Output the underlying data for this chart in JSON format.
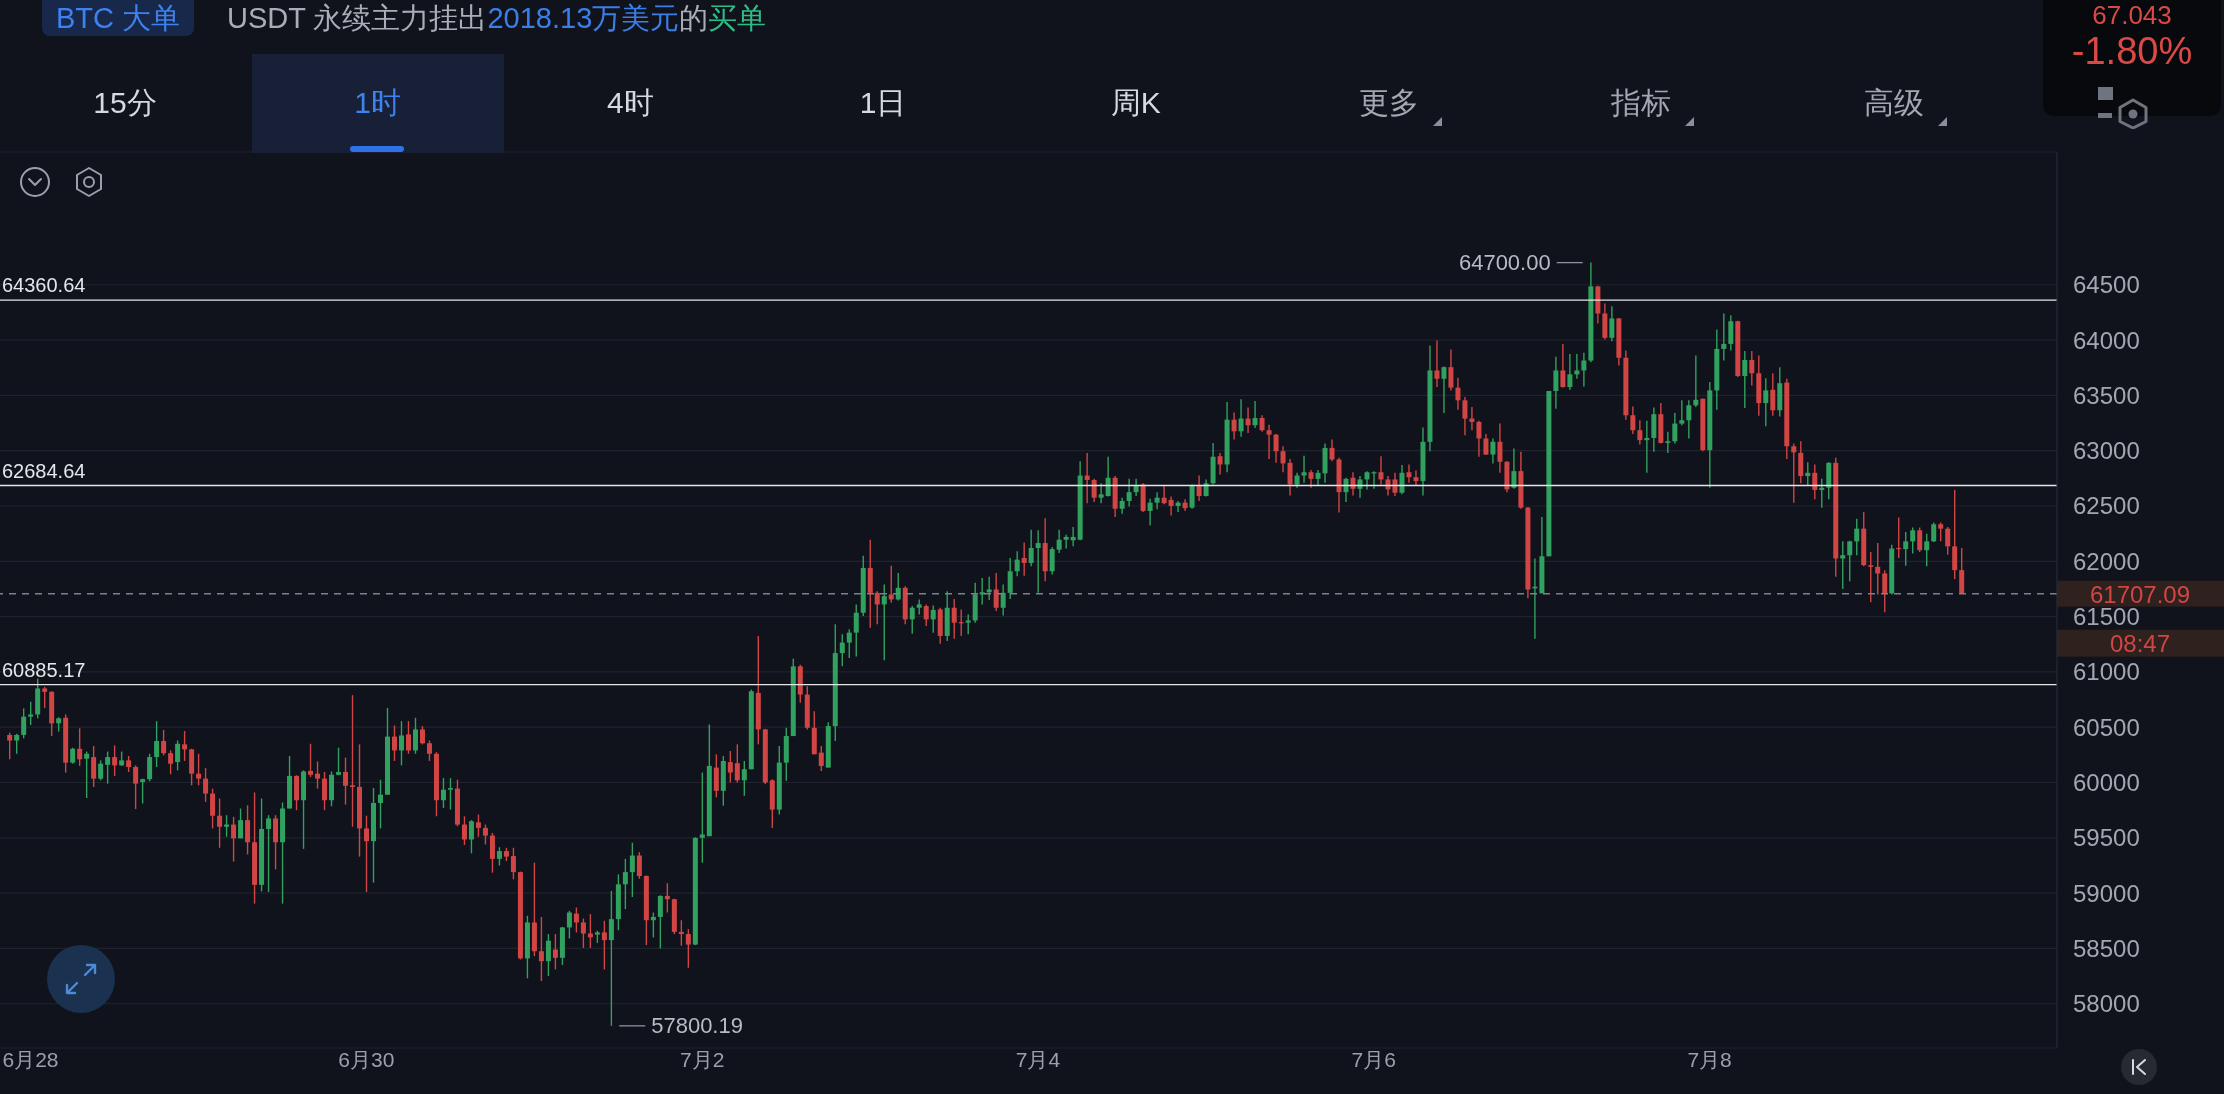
{
  "chart_data": {
    "type": "candlestick",
    "categories": [
      null,
      null,
      null,
      "6月28",
      null,
      null,
      null,
      null,
      null,
      null,
      null,
      null,
      null,
      null,
      null,
      null,
      null,
      null,
      null,
      null,
      null,
      null,
      null,
      null,
      null,
      null,
      null,
      null,
      null,
      null,
      null,
      null,
      null,
      null,
      null,
      null,
      null,
      null,
      null,
      null,
      null,
      null,
      null,
      null,
      null,
      null,
      null,
      null,
      null,
      null,
      null,
      "6月30",
      null,
      null,
      null,
      null,
      null,
      null,
      null,
      null,
      null,
      null,
      null,
      null,
      null,
      null,
      null,
      null,
      null,
      null,
      null,
      null,
      null,
      null,
      null,
      null,
      null,
      null,
      null,
      null,
      null,
      null,
      null,
      null,
      null,
      null,
      null,
      null,
      null,
      null,
      null,
      null,
      null,
      null,
      null,
      null,
      null,
      null,
      null,
      "7月2",
      null,
      null,
      null,
      null,
      null,
      null,
      null,
      null,
      null,
      null,
      null,
      null,
      null,
      null,
      null,
      null,
      null,
      null,
      null,
      null,
      null,
      null,
      null,
      null,
      null,
      null,
      null,
      null,
      null,
      null,
      null,
      null,
      null,
      null,
      null,
      null,
      null,
      null,
      null,
      null,
      null,
      null,
      null,
      null,
      null,
      null,
      null,
      "7月4",
      null,
      null,
      null,
      null,
      null,
      null,
      null,
      null,
      null,
      null,
      null,
      null,
      null,
      null,
      null,
      null,
      null,
      null,
      null,
      null,
      null,
      null,
      null,
      null,
      null,
      null,
      null,
      null,
      null,
      null,
      null,
      null,
      null,
      null,
      null,
      null,
      null,
      null,
      null,
      null,
      null,
      null,
      null,
      null,
      null,
      null,
      null,
      "7月6",
      null,
      null,
      null,
      null,
      null,
      null,
      null,
      null,
      null,
      null,
      null,
      null,
      null,
      null,
      null,
      null,
      null,
      null,
      null,
      null,
      null,
      null,
      null,
      null,
      null,
      null,
      null,
      null,
      null,
      null,
      null,
      null,
      null,
      null,
      null,
      null,
      null,
      null,
      null,
      null,
      null,
      null,
      null,
      null,
      null,
      null,
      null,
      "7月8",
      null,
      null,
      null,
      null,
      null,
      null,
      null,
      null,
      null,
      null,
      null,
      null,
      null,
      null,
      null,
      null,
      null,
      null,
      null,
      null,
      null,
      null,
      null,
      null,
      null,
      null,
      null,
      null,
      null,
      null,
      null,
      null,
      null,
      null,
      null,
      null
    ],
    "ohlc": [
      [
        60430,
        60450,
        60210,
        60380
      ],
      [
        60380,
        60440,
        60260,
        60430
      ],
      [
        60430,
        60670,
        60400,
        60595
      ],
      [
        60595,
        60730,
        60520,
        60615
      ],
      [
        60615,
        60940,
        60580,
        60850
      ],
      [
        60850,
        60865,
        60675,
        60820
      ],
      [
        60820,
        60825,
        60420,
        60535
      ],
      [
        60535,
        60590,
        60460,
        60580
      ],
      [
        60585,
        60615,
        60090,
        60180
      ],
      [
        60180,
        60315,
        60170,
        60305
      ],
      [
        60305,
        60490,
        60150,
        60210
      ],
      [
        60215,
        60280,
        59860,
        60260
      ],
      [
        60230,
        60330,
        59960,
        60035
      ],
      [
        60035,
        60200,
        60020,
        60170
      ],
      [
        60160,
        60280,
        59990,
        60230
      ],
      [
        60230,
        60335,
        60060,
        60155
      ],
      [
        60155,
        60280,
        60150,
        60200
      ],
      [
        60200,
        60240,
        60095,
        60140
      ],
      [
        60140,
        60155,
        59760,
        59990
      ],
      [
        60005,
        60035,
        59810,
        60030
      ],
      [
        60030,
        60260,
        60010,
        60230
      ],
      [
        60230,
        60555,
        60140,
        60375
      ],
      [
        60375,
        60475,
        60245,
        60265
      ],
      [
        60265,
        60290,
        60075,
        60170
      ],
      [
        60185,
        60380,
        60110,
        60350
      ],
      [
        60345,
        60465,
        60195,
        60300
      ],
      [
        60300,
        60305,
        59975,
        60080
      ],
      [
        60080,
        60260,
        59975,
        60035
      ],
      [
        60035,
        60130,
        59825,
        59900
      ],
      [
        59900,
        59945,
        59585,
        59700
      ],
      [
        59700,
        59855,
        59410,
        59600
      ],
      [
        59600,
        59705,
        59510,
        59620
      ],
      [
        59620,
        59690,
        59285,
        59495
      ],
      [
        59495,
        59765,
        59495,
        59660
      ],
      [
        59660,
        59795,
        59350,
        59460
      ],
      [
        59460,
        59910,
        58905,
        59075
      ],
      [
        59075,
        59855,
        59015,
        59580
      ],
      [
        59580,
        59705,
        59010,
        59675
      ],
      [
        59675,
        59705,
        59215,
        59460
      ],
      [
        59460,
        59820,
        58905,
        59765
      ],
      [
        59765,
        60240,
        59765,
        60060
      ],
      [
        60060,
        60065,
        59750,
        59840
      ],
      [
        59840,
        60110,
        59400,
        60100
      ],
      [
        60105,
        60350,
        60050,
        60070
      ],
      [
        60080,
        60190,
        59945,
        60035
      ],
      [
        60035,
        60095,
        59750,
        59840
      ],
      [
        59840,
        60100,
        59785,
        60070
      ],
      [
        60070,
        60315,
        60065,
        60095
      ],
      [
        60095,
        60225,
        59800,
        59970
      ],
      [
        59975,
        60790,
        59600,
        59960
      ],
      [
        59960,
        60345,
        59330,
        59585
      ],
      [
        59585,
        59700,
        59010,
        59470
      ],
      [
        59470,
        59950,
        59095,
        59815
      ],
      [
        59815,
        60025,
        59585,
        59890
      ],
      [
        59890,
        60675,
        59890,
        60415
      ],
      [
        60415,
        60515,
        60195,
        60290
      ],
      [
        60290,
        60555,
        60155,
        60425
      ],
      [
        60435,
        60555,
        60260,
        60290
      ],
      [
        60290,
        60585,
        60260,
        60480
      ],
      [
        60480,
        60510,
        60345,
        60355
      ],
      [
        60355,
        60380,
        60195,
        60260
      ],
      [
        60260,
        60275,
        59695,
        59840
      ],
      [
        59840,
        60040,
        59770,
        59935
      ],
      [
        59935,
        60040,
        59755,
        59950
      ],
      [
        59945,
        60025,
        59605,
        59620
      ],
      [
        59620,
        59695,
        59435,
        59485
      ],
      [
        59485,
        59660,
        59360,
        59650
      ],
      [
        59640,
        59710,
        59510,
        59590
      ],
      [
        59590,
        59620,
        59440,
        59520
      ],
      [
        59520,
        59545,
        59185,
        59310
      ],
      [
        59310,
        59415,
        59250,
        59380
      ],
      [
        59380,
        59410,
        59290,
        59330
      ],
      [
        59335,
        59410,
        59125,
        59190
      ],
      [
        59190,
        59195,
        58400,
        58410
      ],
      [
        58410,
        58795,
        58230,
        58735
      ],
      [
        58735,
        59275,
        58430,
        58475
      ],
      [
        58475,
        58785,
        58205,
        58385
      ],
      [
        58385,
        58630,
        58250,
        58570
      ],
      [
        58490,
        58630,
        58310,
        58415
      ],
      [
        58415,
        58695,
        58350,
        58690
      ],
      [
        58690,
        58840,
        58590,
        58825
      ],
      [
        58815,
        58870,
        58645,
        58735
      ],
      [
        58735,
        58770,
        58505,
        58635
      ],
      [
        58635,
        58810,
        58505,
        58600
      ],
      [
        58625,
        58660,
        58550,
        58645
      ],
      [
        58645,
        58750,
        58310,
        58575
      ],
      [
        58575,
        59020,
        57800.19,
        58765
      ],
      [
        58765,
        59170,
        58665,
        59080
      ],
      [
        59080,
        59310,
        58855,
        59190
      ],
      [
        59190,
        59455,
        58965,
        59340
      ],
      [
        59340,
        59370,
        59130,
        59155
      ],
      [
        59155,
        59160,
        58530,
        58755
      ],
      [
        58755,
        58825,
        58600,
        58785
      ],
      [
        58785,
        58980,
        58500,
        58975
      ],
      [
        58975,
        59090,
        58825,
        58945
      ],
      [
        58945,
        58950,
        58630,
        58650
      ],
      [
        58650,
        58755,
        58525,
        58630
      ],
      [
        58630,
        58675,
        58325,
        58535
      ],
      [
        58535,
        59505,
        58530,
        59500
      ],
      [
        59500,
        60090,
        59275,
        59530
      ],
      [
        59515,
        60525,
        59515,
        60150
      ],
      [
        60135,
        60255,
        59865,
        59925
      ],
      [
        59925,
        60240,
        59790,
        60195
      ],
      [
        60185,
        60285,
        60000,
        60090
      ],
      [
        60175,
        60345,
        60000,
        60020
      ],
      [
        60020,
        60195,
        59880,
        60120
      ],
      [
        60120,
        60840,
        60120,
        60825
      ],
      [
        60810,
        61325,
        60345,
        60480
      ],
      [
        60480,
        60485,
        59985,
        60000
      ],
      [
        60020,
        60030,
        59590,
        59755
      ],
      [
        59755,
        60330,
        59710,
        60180
      ],
      [
        60180,
        60495,
        60015,
        60420
      ],
      [
        60420,
        61120,
        60420,
        61050
      ],
      [
        61050,
        61065,
        60720,
        60795
      ],
      [
        60795,
        60870,
        60480,
        60495
      ],
      [
        60495,
        60645,
        60255,
        60255
      ],
      [
        60270,
        60330,
        60105,
        60150
      ],
      [
        60135,
        60545,
        60135,
        60510
      ],
      [
        60510,
        61430,
        60375,
        61170
      ],
      [
        61170,
        61340,
        61050,
        61265
      ],
      [
        61265,
        61385,
        61125,
        61355
      ],
      [
        61355,
        61610,
        61140,
        61535
      ],
      [
        61535,
        62050,
        61505,
        61940
      ],
      [
        61940,
        62195,
        61400,
        61715
      ],
      [
        61715,
        61730,
        61430,
        61610
      ],
      [
        61610,
        61790,
        61105,
        61685
      ],
      [
        61700,
        61960,
        61625,
        61655
      ],
      [
        61655,
        61895,
        61645,
        61760
      ],
      [
        61760,
        61775,
        61430,
        61475
      ],
      [
        61475,
        61595,
        61345,
        61580
      ],
      [
        61580,
        61655,
        61520,
        61610
      ],
      [
        61595,
        61610,
        61415,
        61475
      ],
      [
        61475,
        61600,
        61355,
        61560
      ],
      [
        61565,
        61580,
        61255,
        61325
      ],
      [
        61325,
        61730,
        61280,
        61580
      ],
      [
        61580,
        61660,
        61300,
        61445
      ],
      [
        61450,
        61565,
        61325,
        61440
      ],
      [
        61445,
        61520,
        61340,
        61465
      ],
      [
        61465,
        61805,
        61445,
        61700
      ],
      [
        61700,
        61850,
        61610,
        61720
      ],
      [
        61720,
        61860,
        61650,
        61745
      ],
      [
        61745,
        61895,
        61550,
        61580
      ],
      [
        61580,
        61790,
        61510,
        61715
      ],
      [
        61715,
        62030,
        61660,
        61910
      ],
      [
        61910,
        62090,
        61865,
        62015
      ],
      [
        62030,
        62170,
        61870,
        61985
      ],
      [
        61985,
        62285,
        61955,
        62120
      ],
      [
        62120,
        62280,
        61715,
        62165
      ],
      [
        62165,
        62390,
        61820,
        61910
      ],
      [
        61910,
        62130,
        61880,
        62110
      ],
      [
        62105,
        62285,
        62075,
        62195
      ],
      [
        62195,
        62240,
        62115,
        62220
      ],
      [
        62190,
        62310,
        62135,
        62220
      ],
      [
        62195,
        62905,
        62190,
        62775
      ],
      [
        62775,
        62980,
        62525,
        62735
      ],
      [
        62735,
        62745,
        62535,
        62575
      ],
      [
        62575,
        62705,
        62525,
        62605
      ],
      [
        62590,
        62945,
        62585,
        62755
      ],
      [
        62755,
        62770,
        62400,
        62475
      ],
      [
        62475,
        62575,
        62430,
        62545
      ],
      [
        62545,
        62745,
        62495,
        62625
      ],
      [
        62625,
        62745,
        62590,
        62685
      ],
      [
        62695,
        62705,
        62445,
        62455
      ],
      [
        62455,
        62565,
        62325,
        62530
      ],
      [
        62530,
        62625,
        62470,
        62575
      ],
      [
        62575,
        62680,
        62515,
        62525
      ],
      [
        62555,
        62585,
        62415,
        62500
      ],
      [
        62500,
        62545,
        62445,
        62530
      ],
      [
        62530,
        62560,
        62455,
        62480
      ],
      [
        62485,
        62695,
        62475,
        62680
      ],
      [
        62680,
        62775,
        62545,
        62590
      ],
      [
        62590,
        62740,
        62585,
        62705
      ],
      [
        62705,
        63070,
        62695,
        62945
      ],
      [
        62950,
        62980,
        62785,
        62875
      ],
      [
        62875,
        63440,
        62805,
        63280
      ],
      [
        63280,
        63345,
        63100,
        63175
      ],
      [
        63175,
        63465,
        63125,
        63290
      ],
      [
        63290,
        63390,
        63160,
        63230
      ],
      [
        63230,
        63450,
        63205,
        63295
      ],
      [
        63295,
        63320,
        63170,
        63185
      ],
      [
        63185,
        63235,
        62925,
        63145
      ],
      [
        63145,
        63150,
        62890,
        62995
      ],
      [
        62995,
        63040,
        62805,
        62885
      ],
      [
        62890,
        62925,
        62595,
        62695
      ],
      [
        62695,
        62800,
        62665,
        62775
      ],
      [
        62775,
        62955,
        62710,
        62805
      ],
      [
        62805,
        62825,
        62665,
        62745
      ],
      [
        62745,
        62825,
        62680,
        62800
      ],
      [
        62795,
        63065,
        62710,
        63025
      ],
      [
        63025,
        63100,
        62905,
        62920
      ],
      [
        62920,
        62935,
        62440,
        62625
      ],
      [
        62625,
        62755,
        62535,
        62745
      ],
      [
        62755,
        62805,
        62595,
        62655
      ],
      [
        62655,
        62770,
        62575,
        62740
      ],
      [
        62740,
        62815,
        62650,
        62805
      ],
      [
        62795,
        62815,
        62655,
        62805
      ],
      [
        62805,
        62950,
        62695,
        62740
      ],
      [
        62740,
        62770,
        62595,
        62650
      ],
      [
        62740,
        62800,
        62590,
        62620
      ],
      [
        62620,
        62870,
        62605,
        62800
      ],
      [
        62805,
        62875,
        62710,
        62760
      ],
      [
        62760,
        62820,
        62685,
        62725
      ],
      [
        62725,
        63210,
        62595,
        63080
      ],
      [
        63080,
        63950,
        62995,
        63725
      ],
      [
        63725,
        63995,
        63575,
        63650
      ],
      [
        63650,
        63760,
        63340,
        63755
      ],
      [
        63755,
        63915,
        63545,
        63570
      ],
      [
        63570,
        63660,
        63370,
        63455
      ],
      [
        63455,
        63485,
        63140,
        63290
      ],
      [
        63290,
        63395,
        63185,
        63260
      ],
      [
        63260,
        63270,
        62945,
        63110
      ],
      [
        63110,
        63150,
        62960,
        62965
      ],
      [
        62965,
        63110,
        62885,
        63080
      ],
      [
        63080,
        63245,
        62800,
        62900
      ],
      [
        62900,
        62905,
        62625,
        62650
      ],
      [
        62665,
        63020,
        62655,
        62815
      ],
      [
        62815,
        62990,
        62475,
        62485
      ],
      [
        62485,
        62490,
        61665,
        61745
      ],
      [
        61755,
        62025,
        61300,
        61770
      ],
      [
        61710,
        62400,
        61710,
        62045
      ],
      [
        62045,
        63540,
        62045,
        63540
      ],
      [
        63540,
        63850,
        63380,
        63725
      ],
      [
        63725,
        63965,
        63570,
        63575
      ],
      [
        63575,
        63875,
        63550,
        63690
      ],
      [
        63690,
        63875,
        63650,
        63725
      ],
      [
        63725,
        63885,
        63580,
        63815
      ],
      [
        63815,
        64700,
        63800,
        64485
      ],
      [
        64485,
        64490,
        64150,
        64240
      ],
      [
        64240,
        64330,
        64005,
        64020
      ],
      [
        64020,
        64305,
        63990,
        64195
      ],
      [
        64195,
        64200,
        63770,
        63840
      ],
      [
        63840,
        63905,
        63280,
        63320
      ],
      [
        63320,
        63400,
        63150,
        63185
      ],
      [
        63185,
        63275,
        63055,
        63095
      ],
      [
        63095,
        63270,
        62800,
        63115
      ],
      [
        63115,
        63390,
        62990,
        63330
      ],
      [
        63330,
        63430,
        63065,
        63070
      ],
      [
        63070,
        63170,
        62980,
        63085
      ],
      [
        63085,
        63340,
        63065,
        63245
      ],
      [
        63245,
        63455,
        63230,
        63275
      ],
      [
        63275,
        63455,
        63110,
        63410
      ],
      [
        63410,
        63860,
        63395,
        63460
      ],
      [
        63470,
        63470,
        62995,
        63005
      ],
      [
        63005,
        63620,
        62665,
        63545
      ],
      [
        63545,
        64095,
        63370,
        63920
      ],
      [
        63920,
        64240,
        63815,
        63965
      ],
      [
        63965,
        64225,
        63905,
        64170
      ],
      [
        64170,
        64175,
        63665,
        63675
      ],
      [
        63675,
        63900,
        63385,
        63820
      ],
      [
        63820,
        63900,
        63590,
        63700
      ],
      [
        63700,
        63860,
        63315,
        63430
      ],
      [
        63430,
        63655,
        63220,
        63545
      ],
      [
        63550,
        63700,
        63315,
        63365
      ],
      [
        63365,
        63755,
        63310,
        63610
      ],
      [
        63615,
        63650,
        62925,
        63040
      ],
      [
        63040,
        63065,
        62530,
        62985
      ],
      [
        62980,
        63085,
        62705,
        62770
      ],
      [
        62770,
        62895,
        62685,
        62800
      ],
      [
        62800,
        62875,
        62560,
        62645
      ],
      [
        62645,
        62745,
        62485,
        62665
      ],
      [
        62665,
        62895,
        62560,
        62890
      ],
      [
        62890,
        62935,
        61860,
        62025
      ],
      [
        62025,
        62180,
        61750,
        62055
      ],
      [
        62055,
        62185,
        61820,
        62180
      ],
      [
        62180,
        62385,
        62055,
        62295
      ],
      [
        62295,
        62445,
        61955,
        61965
      ],
      [
        61965,
        62085,
        61630,
        61950
      ],
      [
        61950,
        62165,
        61700,
        61890
      ],
      [
        61890,
        61920,
        61540,
        61710
      ],
      [
        61710,
        62150,
        61700,
        62115
      ],
      [
        62120,
        62395,
        62030,
        62110
      ],
      [
        62110,
        62265,
        61960,
        62180
      ],
      [
        62180,
        62305,
        62070,
        62280
      ],
      [
        62280,
        62305,
        62085,
        62100
      ],
      [
        62100,
        62250,
        61955,
        62180
      ],
      [
        62180,
        62350,
        62175,
        62335
      ],
      [
        62335,
        62350,
        62180,
        62295
      ],
      [
        62295,
        62310,
        62060,
        62135
      ],
      [
        62135,
        62645,
        61840,
        61920
      ],
      [
        61920,
        62120,
        61707.09,
        61707.09
      ]
    ],
    "colors": [
      "#d24545",
      "#31a15f",
      "#31a15f",
      "#31a15f",
      "#31a15f",
      "#d24545",
      "#d24545",
      "#31a15f",
      "#d24545",
      "#31a15f",
      "#d24545",
      "#31a15f",
      "#d24545",
      "#31a15f",
      "#31a15f",
      "#d24545",
      "#31a15f",
      "#d24545",
      "#d24545",
      "#31a15f",
      "#31a15f",
      "#31a15f",
      "#d24545",
      "#d24545",
      "#31a15f",
      "#d24545",
      "#d24545",
      "#d24545",
      "#d24545",
      "#d24545",
      "#d24545",
      "#31a15f",
      "#d24545",
      "#31a15f",
      "#d24545",
      "#d24545",
      "#31a15f",
      "#31a15f",
      "#d24545",
      "#31a15f",
      "#31a15f",
      "#d24545",
      "#31a15f",
      "#d24545",
      "#d24545",
      "#d24545",
      "#31a15f",
      "#31a15f",
      "#d24545",
      "#d24545",
      "#d24545",
      "#d24545",
      "#31a15f",
      "#31a15f",
      "#31a15f",
      "#d24545",
      "#31a15f",
      "#d24545",
      "#31a15f",
      "#d24545",
      "#d24545",
      "#d24545",
      "#31a15f",
      "#31a15f",
      "#d24545",
      "#d24545",
      "#31a15f",
      "#d24545",
      "#d24545",
      "#d24545",
      "#31a15f",
      "#d24545",
      "#d24545",
      "#d24545",
      "#31a15f",
      "#d24545",
      "#d24545",
      "#31a15f",
      "#d24545",
      "#31a15f",
      "#31a15f",
      "#d24545",
      "#d24545",
      "#d24545",
      "#31a15f",
      "#d24545",
      "#31a15f",
      "#31a15f",
      "#31a15f",
      "#31a15f",
      "#d24545",
      "#d24545",
      "#31a15f",
      "#31a15f",
      "#d24545",
      "#d24545",
      "#d24545",
      "#d24545",
      "#31a15f",
      "#31a15f",
      "#31a15f",
      "#d24545",
      "#31a15f",
      "#d24545",
      "#d24545",
      "#31a15f",
      "#31a15f",
      "#d24545",
      "#d24545",
      "#d24545",
      "#31a15f",
      "#31a15f",
      "#31a15f",
      "#d24545",
      "#d24545",
      "#d24545",
      "#d24545",
      "#31a15f",
      "#31a15f",
      "#31a15f",
      "#31a15f",
      "#31a15f",
      "#31a15f",
      "#d24545",
      "#d24545",
      "#31a15f",
      "#d24545",
      "#31a15f",
      "#d24545",
      "#31a15f",
      "#31a15f",
      "#d24545",
      "#31a15f",
      "#d24545",
      "#31a15f",
      "#d24545",
      "#d24545",
      "#31a15f",
      "#31a15f",
      "#31a15f",
      "#31a15f",
      "#d24545",
      "#31a15f",
      "#31a15f",
      "#31a15f",
      "#d24545",
      "#31a15f",
      "#31a15f",
      "#d24545",
      "#31a15f",
      "#31a15f",
      "#31a15f",
      "#31a15f",
      "#31a15f",
      "#d24545",
      "#d24545",
      "#31a15f",
      "#31a15f",
      "#d24545",
      "#31a15f",
      "#31a15f",
      "#31a15f",
      "#d24545",
      "#31a15f",
      "#31a15f",
      "#d24545",
      "#d24545",
      "#31a15f",
      "#d24545",
      "#31a15f",
      "#d24545",
      "#31a15f",
      "#31a15f",
      "#d24545",
      "#31a15f",
      "#d24545",
      "#31a15f",
      "#d24545",
      "#31a15f",
      "#d24545",
      "#d24545",
      "#d24545",
      "#d24545",
      "#d24545",
      "#31a15f",
      "#31a15f",
      "#d24545",
      "#31a15f",
      "#31a15f",
      "#d24545",
      "#d24545",
      "#31a15f",
      "#d24545",
      "#31a15f",
      "#31a15f",
      "#31a15f",
      "#d24545",
      "#d24545",
      "#d24545",
      "#31a15f",
      "#d24545",
      "#d24545",
      "#31a15f",
      "#31a15f",
      "#d24545",
      "#31a15f",
      "#d24545",
      "#d24545",
      "#d24545",
      "#d24545",
      "#d24545",
      "#d24545",
      "#31a15f",
      "#d24545",
      "#d24545",
      "#31a15f",
      "#d24545",
      "#d24545",
      "#31a15f",
      "#31a15f",
      "#31a15f",
      "#31a15f",
      "#d24545",
      "#31a15f",
      "#31a15f",
      "#31a15f",
      "#31a15f",
      "#d24545",
      "#d24545",
      "#31a15f",
      "#d24545",
      "#d24545",
      "#d24545",
      "#d24545",
      "#31a15f",
      "#31a15f",
      "#d24545",
      "#31a15f",
      "#31a15f",
      "#31a15f",
      "#31a15f",
      "#31a15f",
      "#d24545",
      "#31a15f",
      "#31a15f",
      "#31a15f",
      "#31a15f",
      "#d24545",
      "#31a15f",
      "#d24545",
      "#d24545",
      "#31a15f",
      "#d24545",
      "#31a15f",
      "#d24545",
      "#d24545",
      "#d24545",
      "#31a15f",
      "#d24545",
      "#31a15f",
      "#31a15f",
      "#d24545",
      "#31a15f",
      "#31a15f",
      "#31a15f",
      "#d24545",
      "#d24545",
      "#d24545",
      "#d24545",
      "#31a15f",
      "#d24545",
      "#31a15f",
      "#31a15f",
      "#d24545",
      "#31a15f",
      "#31a15f",
      "#d24545",
      "#d24545",
      "#d24545",
      "#d24545"
    ],
    "ylim": [
      57600,
      65700
    ],
    "yticks": [
      58000,
      58500,
      59000,
      59500,
      60000,
      60500,
      61000,
      61500,
      62000,
      62500,
      63000,
      63500,
      64000,
      64500
    ],
    "grid": "y",
    "ref_lines": [
      {
        "axis": "y",
        "value": 64360.64,
        "label": "64360.64",
        "color": "#e4e6ea"
      },
      {
        "axis": "y",
        "value": 62684.64,
        "label": "62684.64",
        "color": "#e4e6ea"
      },
      {
        "axis": "y",
        "value": 60885.17,
        "label": "60885.17",
        "color": "#e4e6ea"
      },
      {
        "axis": "y",
        "value": 61707.09,
        "label": "61707.09",
        "color": "#7d818b",
        "line_style": "dashed"
      }
    ],
    "annotations": [
      "BTC 大单",
      "USDT 永续主力挂出",
      "2018.13万美元",
      "的",
      "买单",
      "67.043",
      "-1.80%",
      "15分",
      "1时",
      "4时",
      "1日",
      "周K",
      "更多",
      "指标",
      "高级",
      "08:47",
      "64700.00",
      "57800.19"
    ]
  }
}
